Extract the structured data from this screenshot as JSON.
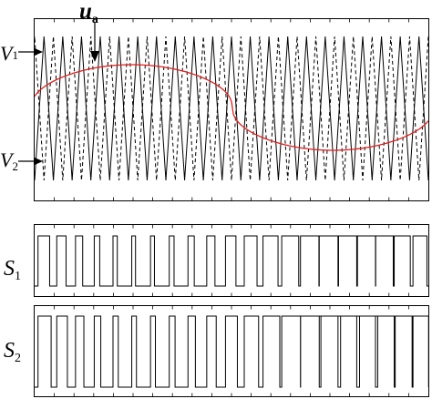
{
  "labels": {
    "ua_main": "u",
    "ua_sub": "a",
    "v1_main": "V",
    "v1_sub": "1",
    "v2_main": "V",
    "v2_sub": "2",
    "s1_main": "S",
    "s1_sub": "1",
    "s2_main": "S",
    "s2_sub": "2"
  },
  "colors": {
    "modulating": "#e02020",
    "carrier": "#000000",
    "frame": "#000000",
    "tick": "#000000"
  },
  "signals": {
    "carrier_cycles": 21,
    "second_carrier_dashed": true,
    "modulating_wave": "sinusoid-like",
    "pulse_trains": [
      "S1",
      "S2"
    ]
  }
}
